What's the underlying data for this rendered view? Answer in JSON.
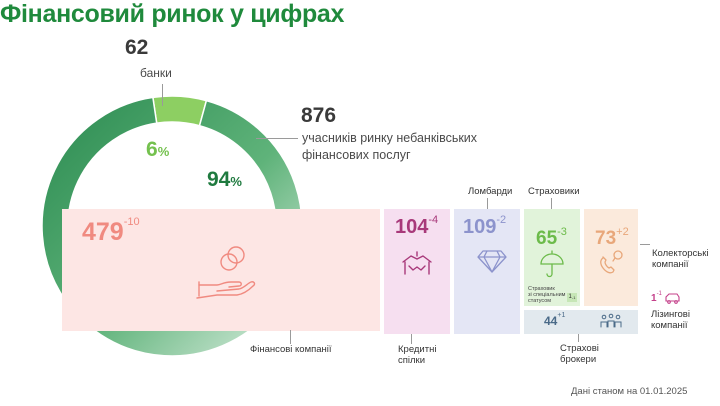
{
  "title": "Фінансовий ринок у цифрах",
  "banks": {
    "value": "62",
    "label": "банки",
    "pct": "6",
    "pct_sign": "%"
  },
  "nonbank": {
    "value": "876",
    "label_line1": "учасників ринку небанківських",
    "label_line2": "фінансових послуг",
    "pct": "94",
    "pct_sign": "%"
  },
  "segments": {
    "fin_companies": {
      "value": "479",
      "change": "-10",
      "label": "Фінансові компанії",
      "color": "#f08a80",
      "bg": "#fde6e4"
    },
    "credit_unions": {
      "value": "104",
      "change": "-4",
      "label_line1": "Кредитні",
      "label_line2": "спілки",
      "color": "#a8397a",
      "bg": "#f6dff0"
    },
    "pawnshops": {
      "value": "109",
      "change": "-2",
      "label": "Ломбарди",
      "color": "#8c93cc",
      "bg": "#e4e6f5"
    },
    "insurers": {
      "value": "65",
      "change": "-3",
      "label": "Страховики",
      "color": "#6cbb4a",
      "bg": "#e1f3da",
      "special_line1": "Страховик",
      "special_line2": "зі спеціальним",
      "special_line3": "статусом",
      "special_value": "1",
      "special_change": "-1"
    },
    "collectors": {
      "value": "73",
      "change": "+2",
      "label_line1": "Колекторські",
      "label_line2": "компанії",
      "color": "#e8a77a",
      "bg": "#fbeadc"
    },
    "leasing": {
      "value": "1",
      "change": "-1",
      "label_line1": "Лізингові",
      "label_line2": "компанії",
      "color": "#c4408a"
    },
    "brokers": {
      "value": "44",
      "change": "+1",
      "label_line1": "Страхові",
      "label_line2": "брокери",
      "color": "#4a6a88",
      "bg": "#e2e9ee"
    }
  },
  "footnote": "Дані станом на 01.01.2025",
  "colors": {
    "title": "#1f8a3c",
    "ring_dark": "#2e8a52",
    "ring_light": "#8dcf62"
  },
  "chart_data": {
    "type": "pie",
    "categories": [
      "банки",
      "учасників ринку небанківських фінансових послуг"
    ],
    "values": [
      62,
      876
    ],
    "percents": [
      6,
      94
    ],
    "breakdown": {
      "categories": [
        "Фінансові компанії",
        "Кредитні спілки",
        "Ломбарди",
        "Страховики",
        "Колекторські компанії",
        "Лізингові компанії",
        "Страхові брокери",
        "Страховик зі спеціальним статусом"
      ],
      "values": [
        479,
        104,
        109,
        65,
        73,
        1,
        44,
        1
      ],
      "changes": [
        -10,
        -4,
        -2,
        -3,
        2,
        -1,
        1,
        -1
      ]
    }
  }
}
